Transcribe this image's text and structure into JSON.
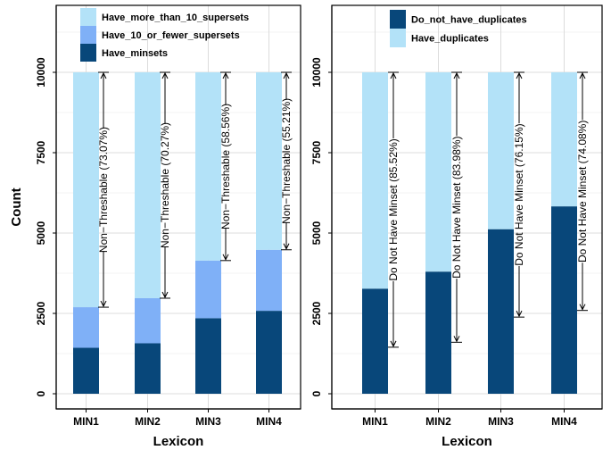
{
  "chart_data": [
    {
      "type": "bar",
      "stacked": true,
      "title": "",
      "xlabel": "Lexicon",
      "ylabel": "Count",
      "categories": [
        "MIN1",
        "MIN2",
        "MIN3",
        "MIN4"
      ],
      "ylim": [
        0,
        10000
      ],
      "yticks": [
        0,
        2500,
        5000,
        7500,
        10000
      ],
      "grid": true,
      "legend_position": "top",
      "series": [
        {
          "name": "Have_minsets",
          "values": [
            1430,
            1570,
            2350,
            2580
          ],
          "color": "#08477a"
        },
        {
          "name": "Have_10_or_fewer_supersets",
          "values": [
            1263,
            1403,
            1794,
            1899
          ],
          "color": "#7fb0f7"
        },
        {
          "name": "Have_more_than_10_supersets",
          "values": [
            7307,
            7027,
            5856,
            5521
          ],
          "color": "#b3e2f8"
        }
      ],
      "legend_order": [
        "Have_more_than_10_supersets",
        "Have_10_or_fewer_supersets",
        "Have_minsets"
      ],
      "annotations": [
        {
          "category": "MIN1",
          "from": 2693,
          "to": 10000,
          "text": "Non−Threshable (73.07%)"
        },
        {
          "category": "MIN2",
          "from": 2973,
          "to": 10000,
          "text": "Non−Threshable (70.27%)"
        },
        {
          "category": "MIN3",
          "from": 4144,
          "to": 10000,
          "text": "Non−Threshable (58.56%)"
        },
        {
          "category": "MIN4",
          "from": 4479,
          "to": 10000,
          "text": "Non−Threshable (55.21%)"
        }
      ]
    },
    {
      "type": "bar",
      "stacked": true,
      "title": "",
      "xlabel": "Lexicon",
      "ylabel": "",
      "categories": [
        "MIN1",
        "MIN2",
        "MIN3",
        "MIN4"
      ],
      "ylim": [
        0,
        10000
      ],
      "yticks": [
        0,
        2500,
        5000,
        7500,
        10000
      ],
      "grid": true,
      "legend_position": "top",
      "series": [
        {
          "name": "Do_not_have_duplicates",
          "values": [
            3270,
            3800,
            5120,
            5830
          ],
          "color": "#08477a"
        },
        {
          "name": "Have_duplicates",
          "values": [
            6730,
            6200,
            4880,
            4170
          ],
          "color": "#b3e2f8"
        }
      ],
      "legend_order": [
        "Do_not_have_duplicates",
        "Have_duplicates"
      ],
      "annotations": [
        {
          "category": "MIN1",
          "from": 1448,
          "to": 10000,
          "text": "Do Not Have Minset (85.52%)"
        },
        {
          "category": "MIN2",
          "from": 1602,
          "to": 10000,
          "text": "Do Not Have Minset (83.98%)"
        },
        {
          "category": "MIN3",
          "from": 2385,
          "to": 10000,
          "text": "Do Not Have Minset (76.15%)"
        },
        {
          "category": "MIN4",
          "from": 2592,
          "to": 10000,
          "text": "Do Not Have Minset (74.08%)"
        }
      ]
    }
  ]
}
